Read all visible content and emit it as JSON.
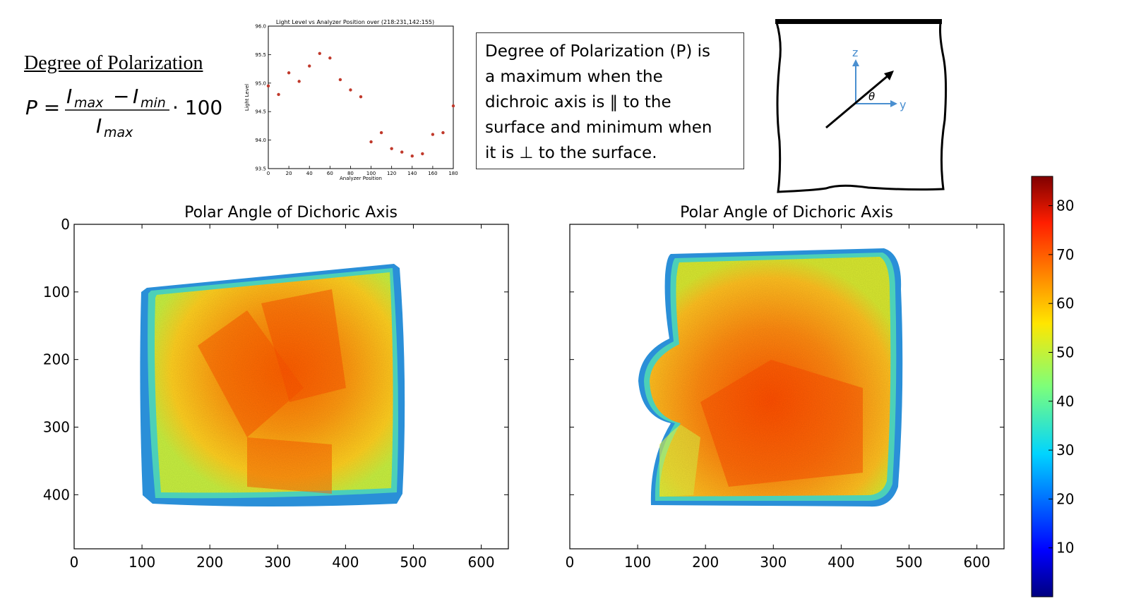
{
  "formula": {
    "heading": "Degree of Polarization",
    "lhs": "P =",
    "numerator_a": "I",
    "numerator_a_sub": "max",
    "minus": "−",
    "numerator_b": "I",
    "numerator_b_sub": "min",
    "denominator": "I",
    "denominator_sub": "max",
    "multiplier": "· 100"
  },
  "description": {
    "lines": [
      "Degree of Polarization (P) is",
      "a maximum when the",
      "dichroic axis is ‖ to the",
      "surface and minimum when",
      "it is ⊥ to the surface."
    ]
  },
  "diagram": {
    "axis_z": "z",
    "axis_y": "y",
    "angle": "θ"
  },
  "colors": {
    "series_point": "#c0392b",
    "diagram_axes": "#4a8fd0",
    "frame": "#000000"
  },
  "chart_data": [
    {
      "type": "scatter",
      "title": "Light Level vs Analyzer Position over (218:231,142:155)",
      "xlabel": "Analyzer Position",
      "ylabel": "Light Level",
      "xlim": [
        0,
        180
      ],
      "ylim": [
        93.5,
        96.0
      ],
      "xticks": [
        0,
        20,
        40,
        60,
        80,
        100,
        120,
        140,
        160,
        180
      ],
      "yticks": [
        93.5,
        94.0,
        94.5,
        95.0,
        95.5,
        96.0
      ],
      "ytick_labels": [
        "93.5",
        "94.0",
        "94.5",
        "95.0",
        "95.5",
        "96.0"
      ],
      "grid": false,
      "x": [
        0,
        10,
        20,
        30,
        40,
        50,
        60,
        70,
        80,
        90,
        100,
        110,
        120,
        130,
        140,
        150,
        160,
        170,
        180
      ],
      "y": [
        94.95,
        94.8,
        95.18,
        95.03,
        95.3,
        95.52,
        95.44,
        95.06,
        94.88,
        94.76,
        93.97,
        94.13,
        93.85,
        93.79,
        93.72,
        93.76,
        94.1,
        94.13,
        94.6
      ]
    },
    {
      "type": "heatmap",
      "title": "Polar Angle of Dichoric Axis",
      "xlim": [
        0,
        640
      ],
      "ylim": [
        480,
        0
      ],
      "xticks": [
        0,
        100,
        200,
        300,
        400,
        500,
        600
      ],
      "yticks": [
        0,
        100,
        200,
        300,
        400
      ]
    },
    {
      "type": "heatmap",
      "title": "Polar Angle of Dichoric Axis",
      "xlim": [
        0,
        640
      ],
      "ylim": [
        480,
        0
      ],
      "xticks": [
        0,
        100,
        200,
        300,
        400,
        500,
        600
      ],
      "yticks": []
    }
  ],
  "colorbar": {
    "range": [
      0,
      86
    ],
    "ticks": [
      "10",
      "20",
      "30",
      "40",
      "50",
      "60",
      "70",
      "80"
    ]
  }
}
